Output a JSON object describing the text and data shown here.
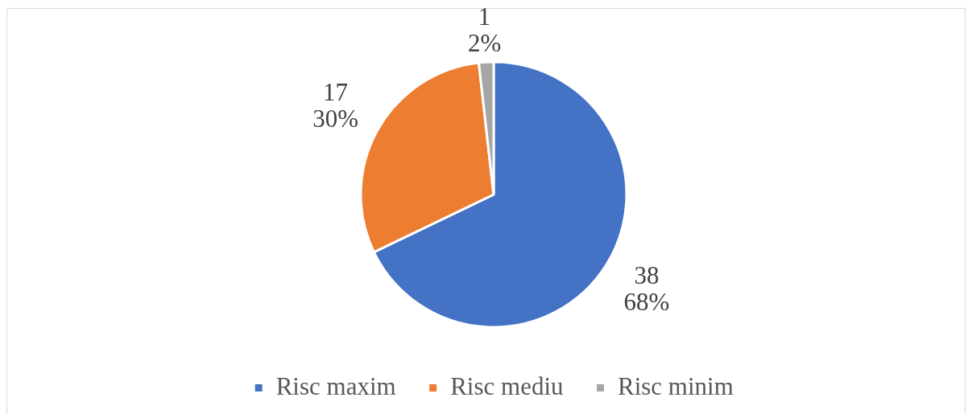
{
  "chart_data": {
    "type": "pie",
    "categories": [
      "Risc maxim",
      "Risc mediu",
      "Risc minim"
    ],
    "values": [
      38,
      17,
      1
    ],
    "colors": [
      "#4472c4",
      "#ed7d31",
      "#a5a5a5"
    ],
    "value_labels": [
      "38\n68%",
      "17\n30%",
      "1\n2%"
    ],
    "legend": "bottom"
  }
}
